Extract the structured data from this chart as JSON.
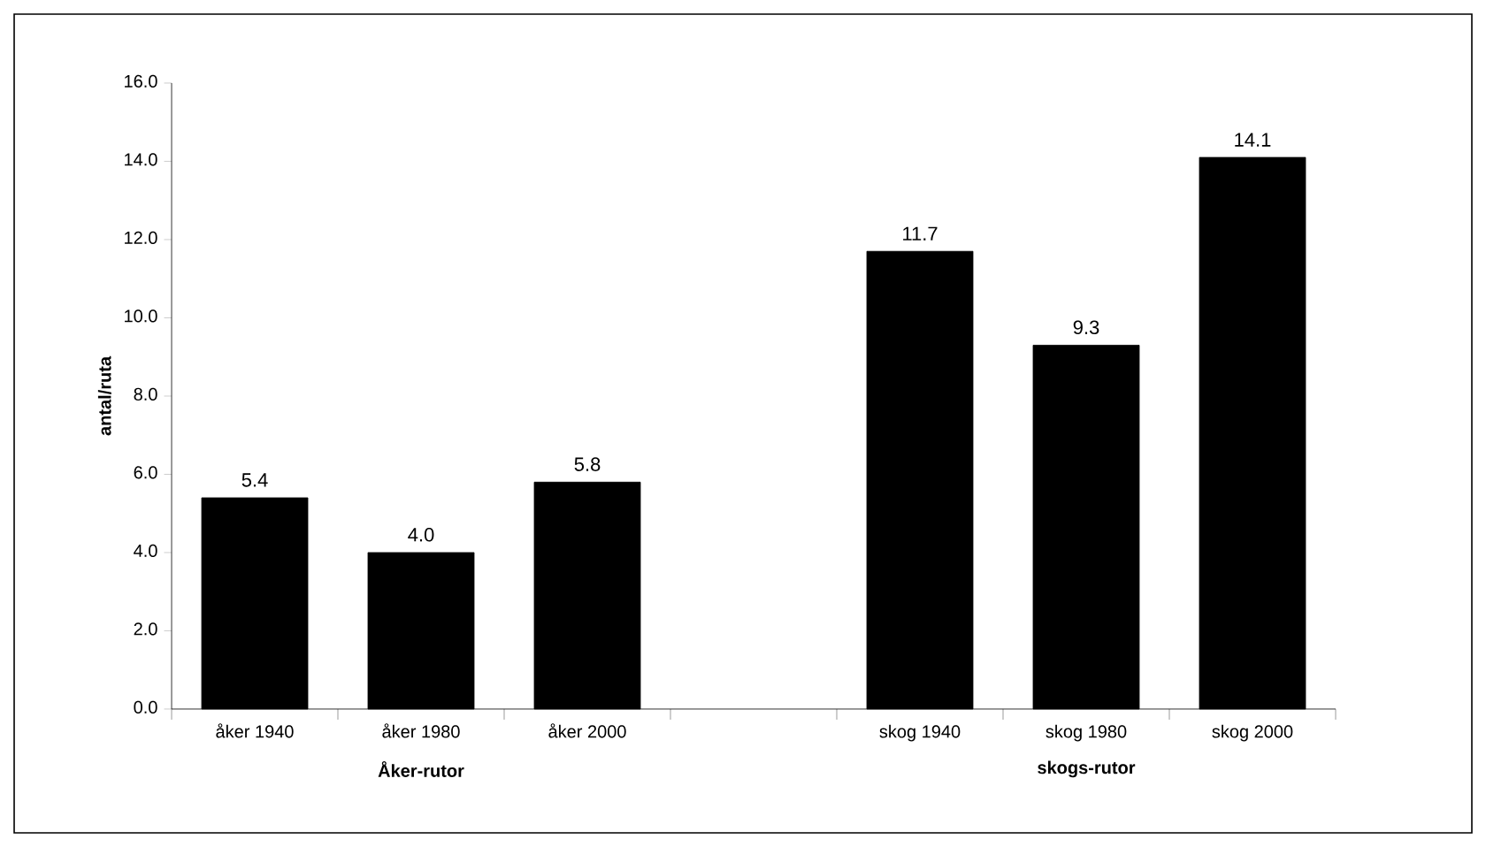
{
  "chart_data": {
    "type": "bar",
    "categories": [
      "åker 1940",
      "åker 1980",
      "åker 2000",
      null,
      "skog 1940",
      "skog 1980",
      "skog 2000"
    ],
    "values": [
      5.4,
      4.0,
      5.8,
      null,
      11.7,
      9.3,
      14.1
    ],
    "value_labels": [
      "5.4",
      "4.0",
      "5.8",
      null,
      "11.7",
      "9.3",
      "14.1"
    ],
    "color": "#000000",
    "ylabel": "antal/ruta",
    "ylim": [
      0,
      16
    ],
    "yticks": [
      {
        "value": 0,
        "label": "0.0"
      },
      {
        "value": 2,
        "label": "2.0"
      },
      {
        "value": 4,
        "label": "4.0"
      },
      {
        "value": 6,
        "label": "6.0"
      },
      {
        "value": 8,
        "label": "8.0"
      },
      {
        "value": 10,
        "label": "10.0"
      },
      {
        "value": 12,
        "label": "12.0"
      },
      {
        "value": 14,
        "label": "14.0"
      },
      {
        "value": 16,
        "label": "16.0"
      }
    ],
    "annotations": [
      "Åker-rutor",
      "skogs-rutor"
    ],
    "grid": false
  }
}
